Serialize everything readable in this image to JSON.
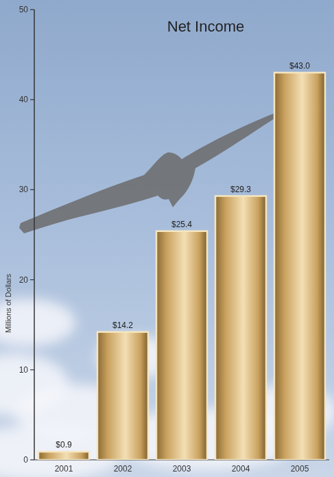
{
  "chart_data": {
    "type": "bar",
    "title": "Net Income",
    "y_label": "Millions of Dollars",
    "categories": [
      "2001",
      "2002",
      "2003",
      "2004",
      "2005"
    ],
    "values": [
      0.9,
      14.2,
      25.4,
      29.3,
      43.0
    ],
    "value_labels": [
      "$0.9",
      "$14.2",
      "$25.4",
      "$29.3",
      "$43.0"
    ],
    "color": "#c9a15e",
    "ylim": [
      0,
      50
    ],
    "yticks": [
      0,
      10,
      20,
      30,
      40,
      50
    ],
    "grid": false,
    "data_labels": true
  }
}
